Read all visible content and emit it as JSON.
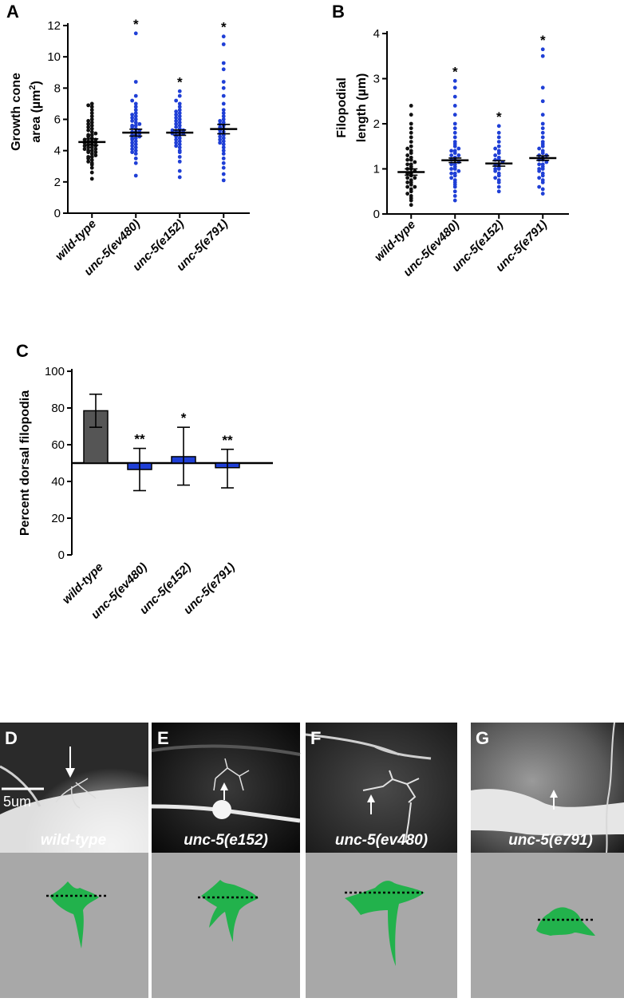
{
  "chart_data": [
    {
      "panel": "A",
      "type": "scatter",
      "ylabel_line1": "Growth cone",
      "ylabel_line2": "area (µm",
      "ylabel_sup": "2",
      "ylabel_end": ")",
      "ylim": [
        0,
        12
      ],
      "yticks": [
        0,
        2,
        4,
        6,
        8,
        10,
        12
      ],
      "categories": [
        "wild-type",
        "unc-5(ev480)",
        "unc-5(e152)",
        "unc-5(e791)"
      ],
      "colors": [
        "#111111",
        "#1f3fd6",
        "#1f3fd6",
        "#1f3fd6"
      ],
      "means": [
        4.55,
        5.15,
        5.15,
        5.38
      ],
      "sem": [
        0.2,
        0.22,
        0.17,
        0.3
      ],
      "significance": [
        "",
        "*",
        "*",
        "*"
      ],
      "values": [
        [
          2.2,
          2.6,
          2.9,
          3.1,
          3.2,
          3.3,
          3.4,
          3.5,
          3.6,
          3.6,
          3.7,
          3.8,
          3.9,
          3.9,
          4.0,
          4.0,
          4.1,
          4.1,
          4.2,
          4.2,
          4.3,
          4.3,
          4.4,
          4.4,
          4.5,
          4.5,
          4.6,
          4.6,
          4.7,
          4.7,
          4.8,
          4.9,
          5.0,
          5.0,
          5.1,
          5.2,
          5.3,
          5.4,
          5.5,
          5.6,
          5.7,
          5.8,
          5.9,
          6.0,
          6.2,
          6.4,
          6.6,
          6.8,
          6.9,
          7.0
        ],
        [
          2.4,
          3.2,
          3.5,
          3.8,
          3.9,
          4.0,
          4.1,
          4.2,
          4.3,
          4.4,
          4.5,
          4.6,
          4.7,
          4.8,
          4.8,
          4.9,
          5.0,
          5.0,
          5.1,
          5.2,
          5.2,
          5.3,
          5.4,
          5.5,
          5.6,
          5.6,
          5.7,
          5.8,
          5.9,
          6.0,
          6.1,
          6.2,
          6.3,
          6.4,
          6.6,
          6.8,
          7.0,
          7.2,
          7.5,
          8.4,
          11.5
        ],
        [
          2.3,
          2.7,
          3.3,
          3.6,
          3.9,
          4.0,
          4.2,
          4.3,
          4.4,
          4.5,
          4.6,
          4.7,
          4.8,
          4.9,
          5.0,
          5.0,
          5.1,
          5.1,
          5.2,
          5.2,
          5.3,
          5.3,
          5.4,
          5.5,
          5.6,
          5.7,
          5.8,
          5.9,
          6.0,
          6.1,
          6.2,
          6.3,
          6.4,
          6.5,
          6.6,
          6.8,
          7.0,
          7.2,
          7.5,
          7.8
        ],
        [
          2.1,
          2.5,
          2.9,
          3.2,
          3.5,
          3.8,
          4.0,
          4.2,
          4.4,
          4.5,
          4.6,
          4.7,
          4.8,
          4.9,
          5.0,
          5.1,
          5.2,
          5.3,
          5.4,
          5.5,
          5.6,
          5.7,
          5.8,
          5.9,
          6.0,
          6.2,
          6.4,
          6.6,
          7.0,
          7.5,
          8.0,
          8.4,
          9.2,
          9.6,
          10.8,
          11.3
        ]
      ]
    },
    {
      "panel": "B",
      "type": "scatter",
      "ylabel_line1": "Filopodial",
      "ylabel_line2": "length  (µm)",
      "ylim": [
        0,
        4
      ],
      "yticks": [
        0,
        1,
        2,
        3,
        4
      ],
      "categories": [
        "wild-type",
        "unc-5(ev480)",
        "unc-5(e152)",
        "unc-5(e791)"
      ],
      "colors": [
        "#111111",
        "#1f3fd6",
        "#1f3fd6",
        "#1f3fd6"
      ],
      "means": [
        0.93,
        1.19,
        1.12,
        1.24
      ],
      "sem": [
        0.07,
        0.05,
        0.06,
        0.05
      ],
      "significance": [
        "",
        "*",
        "*",
        "*"
      ],
      "values": [
        [
          0.2,
          0.3,
          0.35,
          0.4,
          0.45,
          0.5,
          0.55,
          0.6,
          0.6,
          0.65,
          0.7,
          0.7,
          0.75,
          0.8,
          0.8,
          0.85,
          0.9,
          0.9,
          0.95,
          1.0,
          1.0,
          1.05,
          1.1,
          1.1,
          1.15,
          1.2,
          1.2,
          1.25,
          1.3,
          1.35,
          1.4,
          1.45,
          1.5,
          1.6,
          1.7,
          1.8,
          1.9,
          2.0,
          2.2,
          2.4
        ],
        [
          0.3,
          0.4,
          0.5,
          0.6,
          0.65,
          0.7,
          0.75,
          0.8,
          0.85,
          0.9,
          0.9,
          0.95,
          1.0,
          1.0,
          1.05,
          1.1,
          1.1,
          1.15,
          1.2,
          1.2,
          1.25,
          1.3,
          1.3,
          1.35,
          1.4,
          1.4,
          1.45,
          1.5,
          1.55,
          1.6,
          1.7,
          1.8,
          1.9,
          2.0,
          2.2,
          2.4,
          2.6,
          2.8,
          2.95
        ],
        [
          0.5,
          0.6,
          0.7,
          0.75,
          0.8,
          0.85,
          0.9,
          0.95,
          1.0,
          1.0,
          1.05,
          1.1,
          1.1,
          1.15,
          1.2,
          1.2,
          1.25,
          1.3,
          1.35,
          1.4,
          1.45,
          1.5,
          1.6,
          1.7,
          1.8,
          1.95
        ],
        [
          0.45,
          0.55,
          0.6,
          0.7,
          0.75,
          0.8,
          0.85,
          0.9,
          0.95,
          1.0,
          1.0,
          1.05,
          1.1,
          1.1,
          1.15,
          1.2,
          1.2,
          1.25,
          1.3,
          1.3,
          1.35,
          1.4,
          1.45,
          1.5,
          1.55,
          1.6,
          1.7,
          1.8,
          1.9,
          2.0,
          2.2,
          2.5,
          2.8,
          3.5,
          3.65
        ]
      ]
    },
    {
      "panel": "C",
      "type": "bar",
      "ylabel": "Percent dorsal filopodia",
      "ylim": [
        0,
        100
      ],
      "yticks": [
        0,
        20,
        40,
        60,
        80,
        100
      ],
      "baseline": 50,
      "categories": [
        "wild-type",
        "unc-5(ev480)",
        "unc-5(e152)",
        "unc-5(e791)"
      ],
      "colors": [
        "#555555",
        "#1f3fd6",
        "#1f3fd6",
        "#1f3fd6"
      ],
      "values": [
        78.5,
        46.5,
        53.5,
        47.5
      ],
      "err_low": [
        69.5,
        35,
        38,
        36.5
      ],
      "err_high": [
        87.5,
        58,
        69.5,
        57.5
      ],
      "significance": [
        "",
        "**",
        "*",
        "**"
      ]
    }
  ],
  "micrographs": [
    {
      "letter": "D",
      "label": "wild-type",
      "scale_bar": "5um"
    },
    {
      "letter": "E",
      "label": "unc-5(e152)"
    },
    {
      "letter": "F",
      "label": "unc-5(ev480)"
    },
    {
      "letter": "G",
      "label": "unc-5(e791)"
    }
  ]
}
